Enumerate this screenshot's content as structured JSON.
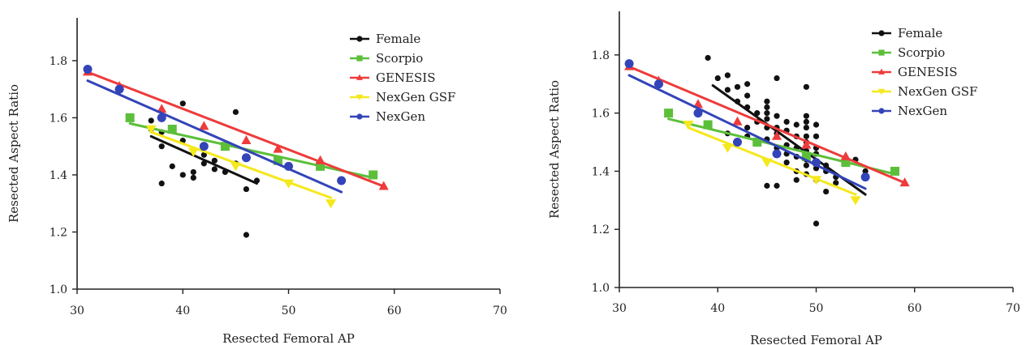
{
  "chart_data": [
    {
      "type": "scatter",
      "title": "",
      "xlabel": "Resected Femoral AP",
      "ylabel": "Resected Aspect Ratio",
      "xlim": [
        30,
        70
      ],
      "ylim": [
        1.0,
        1.95
      ],
      "xticks": [
        30,
        40,
        50,
        60,
        70
      ],
      "yticks": [
        1.0,
        1.2,
        1.4,
        1.6,
        1.8
      ],
      "xtick_labels": [
        "30",
        "40",
        "50",
        "60",
        "70"
      ],
      "ytick_labels": [
        "1.0",
        "1.2",
        "1.4",
        "1.6",
        "1.8"
      ],
      "legend_position": "top-right",
      "grid": false,
      "series": [
        {
          "name": "Female",
          "color": "#111111",
          "marker": "circle",
          "points": [
            [
              37,
              1.59
            ],
            [
              37,
              1.56
            ],
            [
              38,
              1.55
            ],
            [
              38,
              1.5
            ],
            [
              38,
              1.37
            ],
            [
              39,
              1.56
            ],
            [
              39,
              1.43
            ],
            [
              40,
              1.65
            ],
            [
              40,
              1.52
            ],
            [
              40,
              1.4
            ],
            [
              41,
              1.39
            ],
            [
              41,
              1.41
            ],
            [
              42,
              1.47
            ],
            [
              42,
              1.44
            ],
            [
              43,
              1.45
            ],
            [
              43,
              1.42
            ],
            [
              44,
              1.41
            ],
            [
              45,
              1.62
            ],
            [
              45,
              1.44
            ],
            [
              46,
              1.35
            ],
            [
              46,
              1.19
            ],
            [
              47,
              1.38
            ]
          ],
          "fit": [
            [
              37,
              1.535
            ],
            [
              47,
              1.37
            ]
          ]
        },
        {
          "name": "Scorpio",
          "color": "#5cbf3a",
          "marker": "square",
          "points": [
            [
              35,
              1.6
            ],
            [
              39,
              1.56
            ],
            [
              44,
              1.5
            ],
            [
              49,
              1.45
            ],
            [
              53,
              1.43
            ],
            [
              58,
              1.4
            ]
          ],
          "fit": [
            [
              35,
              1.58
            ],
            [
              58,
              1.39
            ]
          ]
        },
        {
          "name": "GENESIS",
          "color": "#ee3b3b",
          "marker": "triangle-up",
          "points": [
            [
              31,
              1.76
            ],
            [
              34,
              1.71
            ],
            [
              38,
              1.63
            ],
            [
              42,
              1.57
            ],
            [
              46,
              1.52
            ],
            [
              49,
              1.49
            ],
            [
              53,
              1.45
            ],
            [
              59,
              1.36
            ]
          ],
          "fit": [
            [
              31,
              1.76
            ],
            [
              59,
              1.36
            ]
          ]
        },
        {
          "name": "NexGen GSF",
          "color": "#f5e81c",
          "marker": "triangle-down",
          "points": [
            [
              37,
              1.56
            ],
            [
              41,
              1.48
            ],
            [
              45,
              1.43
            ],
            [
              50,
              1.37
            ],
            [
              54,
              1.3
            ]
          ],
          "fit": [
            [
              37,
              1.55
            ],
            [
              54,
              1.32
            ]
          ]
        },
        {
          "name": "NexGen",
          "color": "#3344b8",
          "marker": "circle",
          "points": [
            [
              31,
              1.77
            ],
            [
              34,
              1.7
            ],
            [
              38,
              1.6
            ],
            [
              42,
              1.5
            ],
            [
              46,
              1.46
            ],
            [
              50,
              1.43
            ],
            [
              55,
              1.38
            ]
          ],
          "fit": [
            [
              31,
              1.73
            ],
            [
              55,
              1.34
            ]
          ]
        }
      ]
    },
    {
      "type": "scatter",
      "title": "",
      "xlabel": "Resected Femoral AP",
      "ylabel": "Resected Aspect Ratio",
      "xlim": [
        30,
        70
      ],
      "ylim": [
        1.0,
        1.95
      ],
      "xticks": [
        30,
        40,
        50,
        60,
        70
      ],
      "yticks": [
        1.0,
        1.2,
        1.4,
        1.6,
        1.8
      ],
      "xtick_labels": [
        "30",
        "40",
        "50",
        "60",
        "70"
      ],
      "ytick_labels": [
        "1.0",
        "1.2",
        "1.4",
        "1.6",
        "1.8"
      ],
      "legend_position": "top-right",
      "grid": false,
      "series": [
        {
          "name": "Female",
          "color": "#111111",
          "marker": "circle",
          "points": [
            [
              39,
              1.79
            ],
            [
              40,
              1.72
            ],
            [
              41,
              1.73
            ],
            [
              41,
              1.68
            ],
            [
              41,
              1.53
            ],
            [
              42,
              1.69
            ],
            [
              42,
              1.64
            ],
            [
              42,
              1.5
            ],
            [
              43,
              1.7
            ],
            [
              43,
              1.66
            ],
            [
              43,
              1.62
            ],
            [
              43,
              1.55
            ],
            [
              43,
              1.52
            ],
            [
              44,
              1.6
            ],
            [
              44,
              1.57
            ],
            [
              44,
              1.5
            ],
            [
              45,
              1.64
            ],
            [
              45,
              1.62
            ],
            [
              45,
              1.6
            ],
            [
              45,
              1.58
            ],
            [
              45,
              1.55
            ],
            [
              45,
              1.51
            ],
            [
              45,
              1.35
            ],
            [
              46,
              1.72
            ],
            [
              46,
              1.59
            ],
            [
              46,
              1.55
            ],
            [
              46,
              1.53
            ],
            [
              46,
              1.48
            ],
            [
              46,
              1.35
            ],
            [
              47,
              1.57
            ],
            [
              47,
              1.54
            ],
            [
              47,
              1.49
            ],
            [
              47,
              1.46
            ],
            [
              47,
              1.43
            ],
            [
              48,
              1.56
            ],
            [
              48,
              1.52
            ],
            [
              48,
              1.48
            ],
            [
              48,
              1.45
            ],
            [
              48,
              1.4
            ],
            [
              48,
              1.37
            ],
            [
              49,
              1.69
            ],
            [
              49,
              1.59
            ],
            [
              49,
              1.57
            ],
            [
              49,
              1.55
            ],
            [
              49,
              1.52
            ],
            [
              49,
              1.5
            ],
            [
              49,
              1.47
            ],
            [
              49,
              1.44
            ],
            [
              49,
              1.42
            ],
            [
              49,
              1.39
            ],
            [
              50,
              1.56
            ],
            [
              50,
              1.52
            ],
            [
              50,
              1.48
            ],
            [
              50,
              1.46
            ],
            [
              50,
              1.41
            ],
            [
              50,
              1.37
            ],
            [
              50,
              1.22
            ],
            [
              51,
              1.42
            ],
            [
              51,
              1.4
            ],
            [
              51,
              1.33
            ],
            [
              52,
              1.38
            ],
            [
              52,
              1.36
            ],
            [
              53,
              1.44
            ],
            [
              54,
              1.44
            ],
            [
              55,
              1.4
            ]
          ],
          "fit": [
            [
              39.5,
              1.695
            ],
            [
              55,
              1.32
            ]
          ]
        },
        {
          "name": "Scorpio",
          "color": "#5cbf3a",
          "marker": "square",
          "points": [
            [
              35,
              1.6
            ],
            [
              39,
              1.56
            ],
            [
              44,
              1.5
            ],
            [
              49,
              1.45
            ],
            [
              53,
              1.43
            ],
            [
              58,
              1.4
            ]
          ],
          "fit": [
            [
              35,
              1.58
            ],
            [
              58,
              1.39
            ]
          ]
        },
        {
          "name": "GENESIS",
          "color": "#ee3b3b",
          "marker": "triangle-up",
          "points": [
            [
              31,
              1.76
            ],
            [
              34,
              1.71
            ],
            [
              38,
              1.63
            ],
            [
              42,
              1.57
            ],
            [
              46,
              1.52
            ],
            [
              49,
              1.49
            ],
            [
              53,
              1.45
            ],
            [
              59,
              1.36
            ]
          ],
          "fit": [
            [
              31,
              1.76
            ],
            [
              59,
              1.36
            ]
          ]
        },
        {
          "name": "NexGen GSF",
          "color": "#f5e81c",
          "marker": "triangle-down",
          "points": [
            [
              37,
              1.56
            ],
            [
              41,
              1.48
            ],
            [
              45,
              1.43
            ],
            [
              50,
              1.37
            ],
            [
              54,
              1.3
            ]
          ],
          "fit": [
            [
              37,
              1.55
            ],
            [
              54,
              1.32
            ]
          ]
        },
        {
          "name": "NexGen",
          "color": "#3344b8",
          "marker": "circle",
          "points": [
            [
              31,
              1.77
            ],
            [
              34,
              1.7
            ],
            [
              38,
              1.6
            ],
            [
              42,
              1.5
            ],
            [
              46,
              1.46
            ],
            [
              50,
              1.43
            ],
            [
              55,
              1.38
            ]
          ],
          "fit": [
            [
              31,
              1.73
            ],
            [
              55,
              1.34
            ]
          ]
        }
      ]
    }
  ]
}
